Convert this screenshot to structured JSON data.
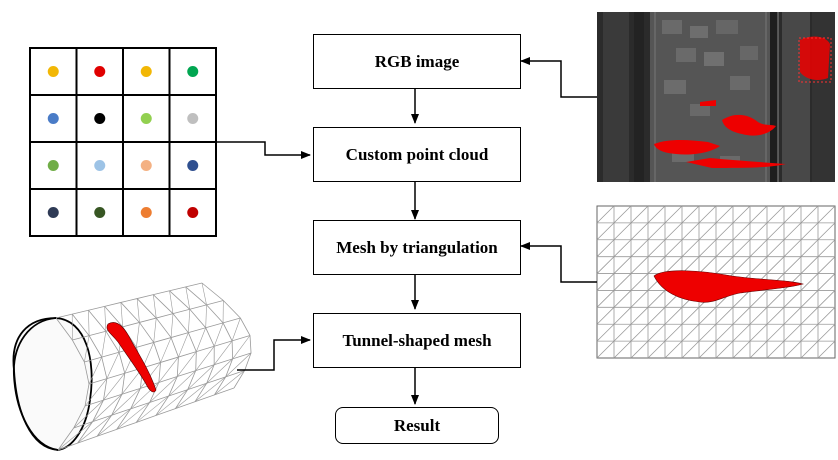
{
  "flow": {
    "rgb_image": "RGB image",
    "point_cloud": "Custom point cloud",
    "triangulation": "Mesh by triangulation",
    "tunnel_mesh": "Tunnel-shaped mesh",
    "result": "Result"
  },
  "point_grid": {
    "colors": [
      [
        "#f2b705",
        "#e00000",
        "#f2b705",
        "#00a651"
      ],
      [
        "#4a7cc7",
        "#000000",
        "#92d050",
        "#bfbfbf"
      ],
      [
        "#70ad47",
        "#9dc3e6",
        "#f4b183",
        "#2f4f8f"
      ],
      [
        "#2e3a55",
        "#375623",
        "#ed7d31",
        "#c00000"
      ]
    ]
  },
  "colors": {
    "defect": "#ee0000",
    "line": "#000000",
    "mesh": "#9a9a9a"
  }
}
